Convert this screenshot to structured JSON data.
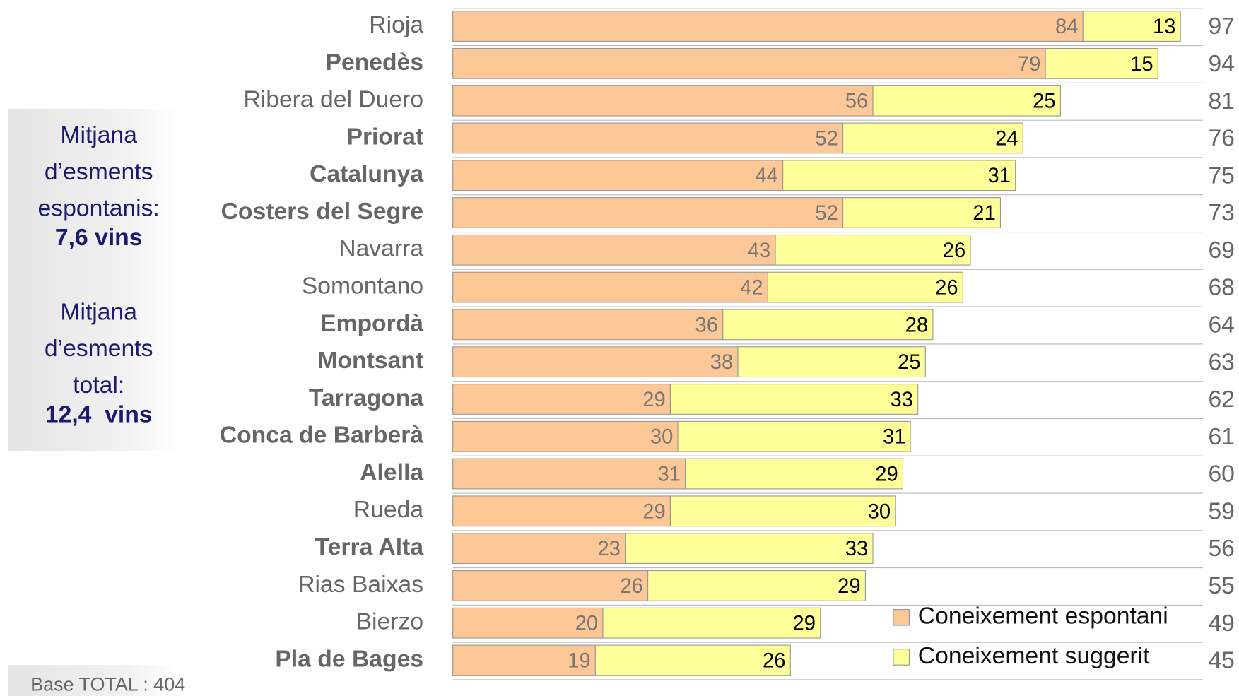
{
  "chart_data": {
    "type": "stacked-barh",
    "categories": [
      "Rioja",
      "Penedès",
      "Ribera del Duero",
      "Priorat",
      "Catalunya",
      "Costers del Segre",
      "Navarra",
      "Somontano",
      "Empordà",
      "Montsant",
      "Tarragona",
      "Conca de Barberà",
      "Alella",
      "Rueda",
      "Terra Alta",
      "Rias Baixas",
      "Bierzo",
      "Pla de Bages"
    ],
    "bold_categories": [
      false,
      true,
      false,
      true,
      true,
      true,
      false,
      false,
      true,
      true,
      true,
      true,
      true,
      false,
      true,
      false,
      false,
      true
    ],
    "series": [
      {
        "name": "Coneixement espontani",
        "color": "#fdc896",
        "label_color": "#777777",
        "values": [
          84,
          79,
          56,
          52,
          44,
          52,
          43,
          42,
          36,
          38,
          29,
          30,
          31,
          29,
          23,
          26,
          20,
          19
        ]
      },
      {
        "name": "Coneixement suggerit",
        "color": "#ffff99",
        "label_color": "#000000",
        "values": [
          13,
          15,
          25,
          24,
          31,
          21,
          26,
          26,
          28,
          25,
          33,
          31,
          29,
          30,
          33,
          29,
          29,
          26
        ]
      }
    ],
    "totals": [
      97,
      94,
      81,
      76,
      75,
      73,
      69,
      68,
      64,
      63,
      62,
      61,
      60,
      59,
      56,
      55,
      49,
      45
    ],
    "xlim": [
      0,
      100
    ],
    "legend": "lower-right",
    "side_notes": [
      {
        "lines": [
          "Mitjana",
          "d’esments",
          "espontanis:"
        ],
        "value": "7,6 vins"
      },
      {
        "lines": [
          "Mitjana",
          "d’esments",
          "total:"
        ],
        "value": "12,4  vins"
      }
    ],
    "footnote": "Base TOTAL : 404"
  }
}
